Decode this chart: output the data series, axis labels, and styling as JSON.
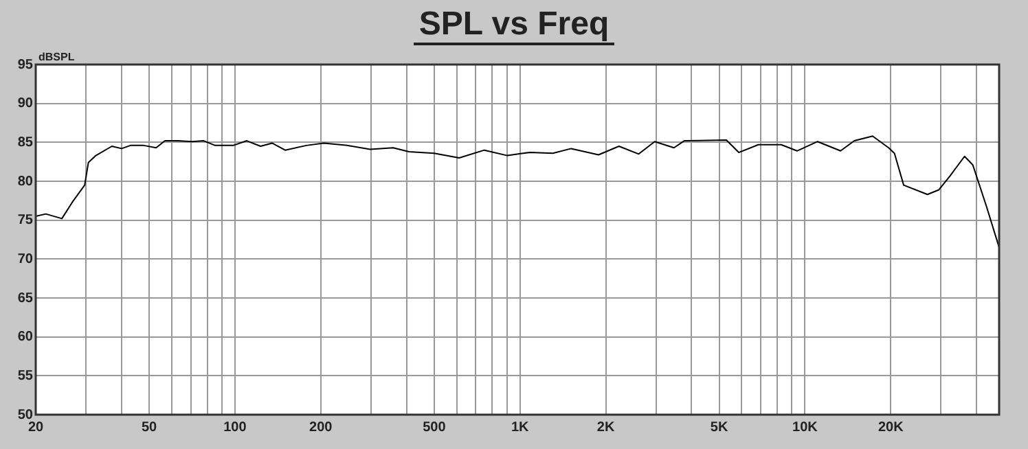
{
  "chart_data": {
    "type": "line",
    "title": "SPL vs Freq",
    "ylabel": "dBSPL",
    "log": "x",
    "grid": true,
    "legend": false,
    "marker": "none",
    "line_style": "solid",
    "xlim": [
      20,
      48000
    ],
    "ylim": [
      50,
      95
    ],
    "yticks": [
      50,
      55,
      60,
      65,
      70,
      75,
      80,
      85,
      90,
      95
    ],
    "xticks": [
      20,
      {
        "value": 30,
        "label": null
      },
      {
        "value": 40,
        "label": null
      },
      50,
      {
        "value": 60,
        "label": null
      },
      {
        "value": 70,
        "label": null
      },
      {
        "value": 80,
        "label": null
      },
      {
        "value": 90,
        "label": null
      },
      100,
      {
        "value": 200,
        "label": "200"
      },
      {
        "value": 300,
        "label": null
      },
      {
        "value": 400,
        "label": null
      },
      500,
      {
        "value": 600,
        "label": null
      },
      {
        "value": 700,
        "label": null
      },
      {
        "value": 800,
        "label": null
      },
      {
        "value": 900,
        "label": null
      },
      {
        "value": 1000,
        "label": "1K"
      },
      {
        "value": 2000,
        "label": "2K"
      },
      {
        "value": 3000,
        "label": null
      },
      {
        "value": 4000,
        "label": null
      },
      {
        "value": 5000,
        "label": "5K"
      },
      {
        "value": 6000,
        "label": null
      },
      {
        "value": 7000,
        "label": null
      },
      {
        "value": 8000,
        "label": null
      },
      {
        "value": 9000,
        "label": null
      },
      {
        "value": 10000,
        "label": "10K"
      },
      {
        "value": 20000,
        "label": "20K"
      },
      {
        "value": 30000,
        "label": null
      },
      {
        "value": 40000,
        "label": null
      }
    ],
    "series": [
      {
        "color": "#000000",
        "x": [
          20,
          21.7,
          24.7,
          27.1,
          29.7,
          30.6,
          32.5,
          37,
          40,
          43,
          47.9,
          52.9,
          56.8,
          63,
          70.7,
          77.7,
          85.2,
          98.6,
          110,
          123,
          135,
          150,
          178,
          205,
          248,
          298,
          359,
          408,
          500,
          612,
          750,
          903,
          1026,
          1085,
          1304,
          1512,
          1887,
          2225,
          2610,
          2970,
          3470,
          3770,
          5300,
          5860,
          6860,
          8250,
          9380,
          11070,
          13330,
          14900,
          17270,
          19650,
          20600,
          22200,
          26900,
          29500,
          32300,
          36300,
          38800,
          43300,
          48000
        ],
        "values": [
          75.5,
          75.8,
          75.2,
          77.5,
          79.5,
          82.4,
          83.3,
          84.5,
          84.2,
          84.6,
          84.6,
          84.3,
          85.2,
          85.2,
          85.1,
          85.2,
          84.6,
          84.6,
          85.2,
          84.5,
          84.9,
          84.0,
          84.6,
          84.9,
          84.6,
          84.1,
          84.3,
          83.8,
          83.6,
          83.0,
          84.0,
          83.3,
          83.6,
          83.7,
          83.6,
          84.2,
          83.4,
          84.5,
          83.5,
          85.1,
          84.3,
          85.2,
          85.3,
          83.7,
          84.7,
          84.7,
          83.9,
          85.1,
          83.9,
          85.2,
          85.8,
          84.3,
          83.6,
          79.5,
          78.3,
          78.9,
          80.7,
          83.2,
          82.1,
          76.8,
          71.5
        ]
      }
    ]
  }
}
